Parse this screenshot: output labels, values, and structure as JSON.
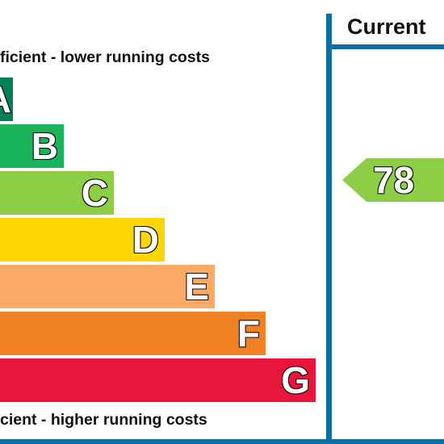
{
  "chart_data": {
    "type": "bar",
    "caption_top": "ficient - lower running costs",
    "caption_bottom": "cient - higher running costs",
    "column_header": "Current",
    "bands": [
      {
        "label": "A",
        "color": "#008054"
      },
      {
        "label": "B",
        "color": "#19b459"
      },
      {
        "label": "C",
        "color": "#8dce46"
      },
      {
        "label": "D",
        "color": "#ffd500"
      },
      {
        "label": "E",
        "color": "#fcaa65"
      },
      {
        "label": "F",
        "color": "#ef8023"
      },
      {
        "label": "G",
        "color": "#e9153b"
      }
    ],
    "current_rating": {
      "value": "78",
      "band": "C",
      "color": "#8dce46"
    }
  },
  "colors": {
    "divider": "#0f6ea0"
  }
}
